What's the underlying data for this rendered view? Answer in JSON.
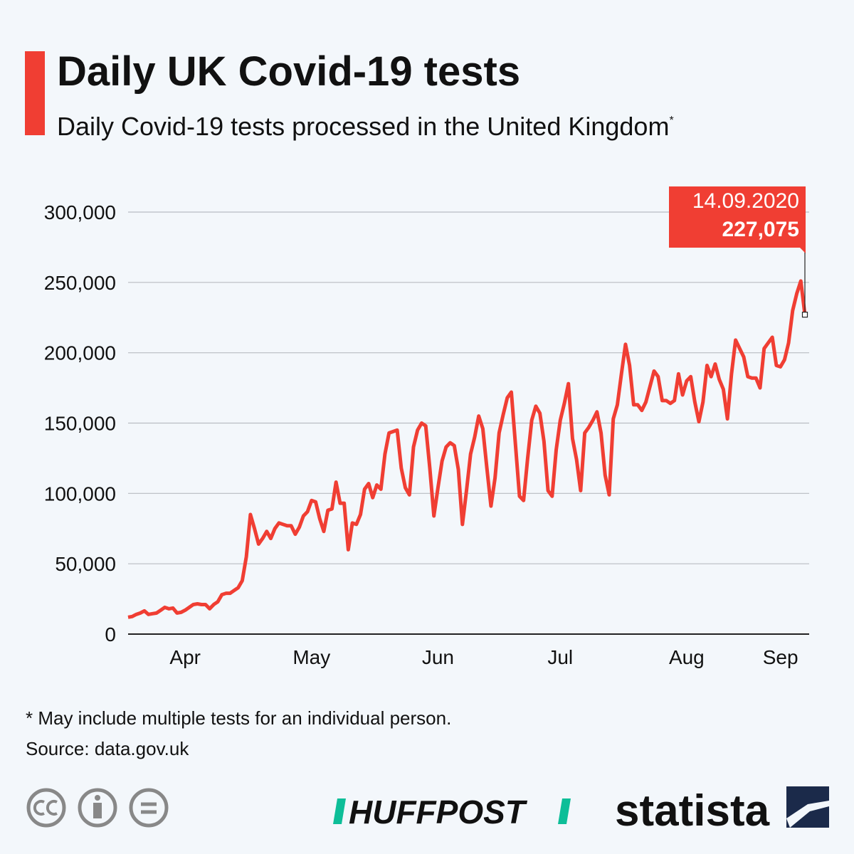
{
  "chart_data": {
    "type": "line",
    "title": "Daily UK Covid-19 tests",
    "subtitle": "Daily Covid-19 tests processed in the United Kingdom",
    "subtitle_mark": "*",
    "annotation": "14.09.2020",
    "footnote": "* May include multiple tests for an individual person.",
    "source": "Source: data.gov.uk",
    "logos": [
      "HUFFPOST",
      "statista"
    ],
    "color": "#f03e33",
    "grid": true,
    "ylim": [
      0,
      300000
    ],
    "yticks": [
      0,
      {
        "value": 50000,
        "label": "50,000"
      },
      {
        "value": 100000,
        "label": "100,000"
      },
      {
        "value": 150000,
        "label": "150,000"
      },
      {
        "value": 200000,
        "label": "200,000"
      },
      {
        "value": 250000,
        "label": "250,000"
      },
      {
        "value": 300000,
        "label": "300,000"
      }
    ],
    "categories": [
      null,
      null,
      null,
      null,
      null,
      null,
      null,
      null,
      null,
      null,
      null,
      null,
      null,
      null,
      "Apr",
      null,
      null,
      null,
      null,
      null,
      null,
      null,
      null,
      null,
      null,
      null,
      null,
      null,
      null,
      null,
      null,
      null,
      null,
      null,
      null,
      null,
      null,
      null,
      null,
      null,
      null,
      null,
      null,
      null,
      null,
      "May",
      null,
      null,
      null,
      null,
      null,
      null,
      null,
      null,
      null,
      null,
      null,
      null,
      null,
      null,
      null,
      null,
      null,
      null,
      null,
      null,
      null,
      null,
      null,
      null,
      null,
      null,
      null,
      null,
      null,
      null,
      "Jun",
      null,
      null,
      null,
      null,
      null,
      null,
      null,
      null,
      null,
      null,
      null,
      null,
      null,
      null,
      null,
      null,
      null,
      null,
      null,
      null,
      null,
      null,
      null,
      null,
      null,
      null,
      null,
      null,
      null,
      "Jul",
      null,
      null,
      null,
      null,
      null,
      null,
      null,
      null,
      null,
      null,
      null,
      null,
      null,
      null,
      null,
      null,
      null,
      null,
      null,
      null,
      null,
      null,
      null,
      null,
      null,
      null,
      null,
      null,
      null,
      null,
      "Aug",
      null,
      null,
      null,
      null,
      null,
      null,
      null,
      null,
      null,
      null,
      null,
      null,
      null,
      null,
      null,
      null,
      null,
      null,
      null,
      null,
      null,
      null,
      "Sep",
      null,
      null,
      null,
      null,
      null,
      null
    ],
    "values": [
      12000,
      12500,
      14000,
      15000,
      16500,
      14000,
      14500,
      15000,
      17000,
      19000,
      18000,
      18500,
      15000,
      15500,
      17000,
      19000,
      21000,
      21500,
      21000,
      21000,
      18000,
      21000,
      23000,
      28000,
      29000,
      29000,
      31000,
      33000,
      38000,
      55000,
      85000,
      75000,
      64000,
      68000,
      73000,
      68000,
      75000,
      79000,
      78000,
      77000,
      77000,
      71000,
      76000,
      84000,
      87000,
      95000,
      94000,
      82000,
      73000,
      88000,
      89000,
      108000,
      93000,
      93000,
      60000,
      79000,
      78000,
      85000,
      103000,
      107000,
      97000,
      106000,
      103000,
      128000,
      143000,
      144000,
      145000,
      118000,
      104000,
      99000,
      133000,
      145000,
      150000,
      148000,
      118000,
      84000,
      104000,
      123000,
      133000,
      136000,
      134000,
      117000,
      78000,
      102000,
      128000,
      140000,
      155000,
      146000,
      118000,
      91000,
      111000,
      143000,
      156000,
      168000,
      172000,
      135000,
      98000,
      95000,
      125000,
      152000,
      162000,
      157000,
      137000,
      102000,
      98000,
      131000,
      152000,
      164000,
      178000,
      139000,
      124000,
      102000,
      143000,
      147000,
      152000,
      158000,
      143000,
      113000,
      99000,
      153000,
      163000,
      185000,
      206000,
      191000,
      163000,
      163000,
      159000,
      165000,
      176000,
      187000,
      183000,
      166000,
      166000,
      164000,
      166000,
      185000,
      170000,
      180000,
      183000,
      165000,
      151000,
      165000,
      191000,
      183000,
      192000,
      181000,
      174000,
      153000,
      185000,
      209000,
      203000,
      197000,
      183000,
      182000,
      182000,
      175000,
      203000,
      207000,
      211000,
      191000,
      190000,
      195000,
      207000,
      230000,
      242000,
      251000,
      227075
    ],
    "value_labels": [
      null,
      null,
      null,
      null,
      null,
      null,
      null,
      null,
      null,
      null,
      null,
      null,
      null,
      null,
      null,
      null,
      null,
      null,
      null,
      null,
      null,
      null,
      null,
      null,
      null,
      null,
      null,
      null,
      null,
      null,
      null,
      null,
      null,
      null,
      null,
      null,
      null,
      null,
      null,
      null,
      null,
      null,
      null,
      null,
      null,
      null,
      null,
      null,
      null,
      null,
      null,
      null,
      null,
      null,
      null,
      null,
      null,
      null,
      null,
      null,
      null,
      null,
      null,
      null,
      null,
      null,
      null,
      null,
      null,
      null,
      null,
      null,
      null,
      null,
      null,
      null,
      null,
      null,
      null,
      null,
      null,
      null,
      null,
      null,
      null,
      null,
      null,
      null,
      null,
      null,
      null,
      null,
      null,
      null,
      null,
      null,
      null,
      null,
      null,
      null,
      null,
      null,
      null,
      null,
      null,
      null,
      null,
      null,
      null,
      null,
      null,
      null,
      null,
      null,
      null,
      null,
      null,
      null,
      null,
      null,
      null,
      null,
      null,
      null,
      null,
      null,
      null,
      null,
      null,
      null,
      null,
      null,
      null,
      null,
      null,
      null,
      null,
      null,
      null,
      null,
      null,
      null,
      null,
      null,
      null,
      null,
      null,
      null,
      null,
      null,
      null,
      null,
      null,
      null,
      null,
      null,
      null,
      null,
      null,
      null,
      null,
      null,
      null,
      null,
      null,
      null,
      "227,075"
    ]
  }
}
